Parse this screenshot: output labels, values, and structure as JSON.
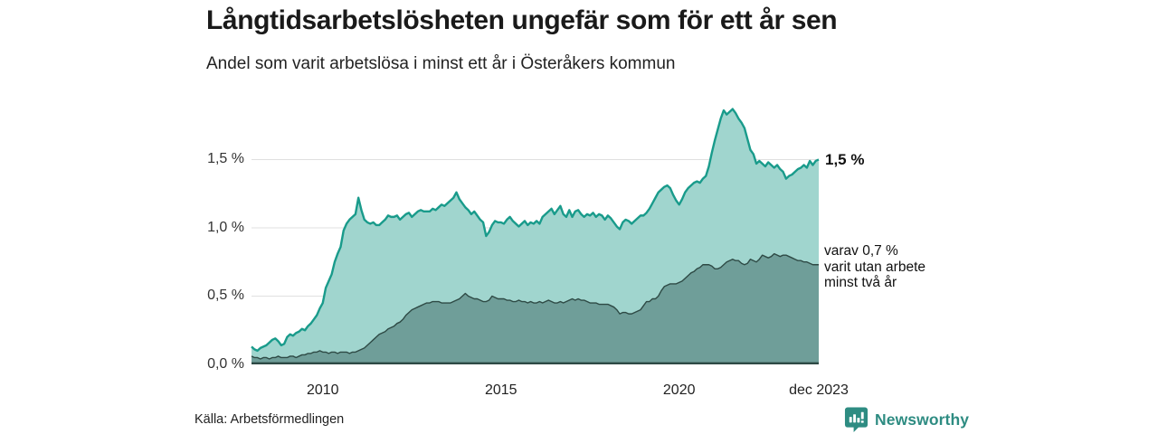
{
  "header": {
    "title": "Långtidsarbetslösheten ungefär som för ett år sen",
    "subtitle": "Andel som varit arbetslösa i minst ett år i Österåkers kommun"
  },
  "annotations": {
    "total_end_label": "1,5 %",
    "subset_end_lines": [
      "varav 0,7 %",
      "varit utan arbete",
      "minst två år"
    ]
  },
  "footer": {
    "source": "Källa: Arbetsförmedlingen",
    "brand": "Newsworthy"
  },
  "colors": {
    "total_line": "#199B8B",
    "total_fill": "#A0D5CE",
    "subset_line": "#2E4A45",
    "subset_fill": "#6F9E99",
    "gridline": "#E0E0E0",
    "baseline": "#2E4A45",
    "brand_teal": "#2E8C82",
    "text_dark": "#1A1A1A"
  },
  "chart_data": {
    "type": "area",
    "title": "Långtidsarbetslösheten ungefär som för ett år sen",
    "subtitle": "Andel som varit arbetslösa i minst ett år i Österåkers kommun",
    "unit": "%",
    "frequency": "monthly",
    "x_start": "2008-01",
    "x_end": "2023-12",
    "ylim": [
      0,
      1.94
    ],
    "grid": true,
    "legend": "none",
    "y_ticks": [
      {
        "value": 0.0,
        "label": "0,0 %"
      },
      {
        "value": 0.5,
        "label": "0,5 %"
      },
      {
        "value": 1.0,
        "label": "1,0 %"
      },
      {
        "value": 1.5,
        "label": "1,5 %"
      }
    ],
    "x_ticks": [
      {
        "month_index": 24,
        "label": "2010"
      },
      {
        "month_index": 84,
        "label": "2015"
      },
      {
        "month_index": 144,
        "label": "2020"
      },
      {
        "month_index": 191,
        "label": "dec 2023"
      }
    ],
    "series": [
      {
        "name": "Andel arbetslösa minst ett år",
        "end_value_label": "1,5 %",
        "values": [
          0.13,
          0.11,
          0.1,
          0.12,
          0.13,
          0.14,
          0.16,
          0.18,
          0.19,
          0.17,
          0.14,
          0.15,
          0.2,
          0.22,
          0.21,
          0.23,
          0.24,
          0.26,
          0.25,
          0.28,
          0.3,
          0.33,
          0.36,
          0.41,
          0.45,
          0.56,
          0.61,
          0.66,
          0.75,
          0.81,
          0.86,
          0.98,
          1.03,
          1.06,
          1.08,
          1.1,
          1.22,
          1.13,
          1.06,
          1.04,
          1.03,
          1.04,
          1.02,
          1.02,
          1.04,
          1.06,
          1.09,
          1.08,
          1.08,
          1.09,
          1.06,
          1.08,
          1.1,
          1.11,
          1.08,
          1.1,
          1.12,
          1.13,
          1.12,
          1.12,
          1.12,
          1.14,
          1.13,
          1.15,
          1.17,
          1.16,
          1.18,
          1.2,
          1.22,
          1.26,
          1.21,
          1.18,
          1.15,
          1.13,
          1.1,
          1.12,
          1.09,
          1.06,
          1.04,
          0.94,
          0.97,
          1.02,
          1.05,
          1.04,
          1.04,
          1.03,
          1.06,
          1.08,
          1.05,
          1.03,
          1.01,
          1.03,
          1.05,
          1.02,
          1.04,
          1.03,
          1.05,
          1.03,
          1.08,
          1.1,
          1.12,
          1.14,
          1.1,
          1.13,
          1.16,
          1.1,
          1.08,
          1.13,
          1.08,
          1.12,
          1.13,
          1.1,
          1.08,
          1.1,
          1.09,
          1.11,
          1.08,
          1.1,
          1.09,
          1.06,
          1.09,
          1.07,
          1.04,
          1.01,
          0.99,
          1.04,
          1.06,
          1.05,
          1.03,
          1.05,
          1.07,
          1.09,
          1.09,
          1.11,
          1.14,
          1.18,
          1.22,
          1.26,
          1.28,
          1.3,
          1.31,
          1.29,
          1.24,
          1.2,
          1.17,
          1.21,
          1.26,
          1.29,
          1.31,
          1.33,
          1.34,
          1.33,
          1.36,
          1.38,
          1.45,
          1.55,
          1.64,
          1.72,
          1.8,
          1.86,
          1.83,
          1.85,
          1.87,
          1.84,
          1.8,
          1.77,
          1.73,
          1.65,
          1.57,
          1.54,
          1.47,
          1.49,
          1.47,
          1.45,
          1.48,
          1.46,
          1.44,
          1.46,
          1.43,
          1.41,
          1.36,
          1.38,
          1.39,
          1.41,
          1.43,
          1.44,
          1.46,
          1.44,
          1.49,
          1.46,
          1.49,
          1.5
        ]
      },
      {
        "name": "Varav utan arbete minst två år",
        "end_value_label": "varav 0,7 % varit utan arbete minst två år",
        "values": [
          0.06,
          0.05,
          0.05,
          0.04,
          0.05,
          0.05,
          0.04,
          0.05,
          0.05,
          0.06,
          0.05,
          0.05,
          0.05,
          0.06,
          0.06,
          0.05,
          0.06,
          0.07,
          0.07,
          0.08,
          0.08,
          0.09,
          0.09,
          0.1,
          0.09,
          0.09,
          0.08,
          0.09,
          0.09,
          0.08,
          0.09,
          0.09,
          0.09,
          0.08,
          0.09,
          0.09,
          0.1,
          0.11,
          0.12,
          0.14,
          0.16,
          0.18,
          0.2,
          0.22,
          0.23,
          0.24,
          0.26,
          0.27,
          0.28,
          0.3,
          0.31,
          0.33,
          0.36,
          0.38,
          0.4,
          0.41,
          0.42,
          0.43,
          0.44,
          0.45,
          0.45,
          0.46,
          0.46,
          0.46,
          0.45,
          0.45,
          0.45,
          0.45,
          0.46,
          0.47,
          0.48,
          0.5,
          0.52,
          0.5,
          0.49,
          0.48,
          0.48,
          0.47,
          0.46,
          0.46,
          0.47,
          0.5,
          0.49,
          0.48,
          0.48,
          0.48,
          0.47,
          0.47,
          0.46,
          0.46,
          0.47,
          0.46,
          0.46,
          0.45,
          0.46,
          0.45,
          0.45,
          0.46,
          0.45,
          0.46,
          0.47,
          0.46,
          0.45,
          0.45,
          0.46,
          0.45,
          0.46,
          0.47,
          0.48,
          0.47,
          0.48,
          0.47,
          0.47,
          0.46,
          0.45,
          0.45,
          0.45,
          0.44,
          0.44,
          0.44,
          0.44,
          0.43,
          0.42,
          0.4,
          0.37,
          0.38,
          0.38,
          0.37,
          0.37,
          0.38,
          0.39,
          0.4,
          0.43,
          0.46,
          0.46,
          0.48,
          0.48,
          0.5,
          0.54,
          0.57,
          0.58,
          0.59,
          0.59,
          0.59,
          0.6,
          0.61,
          0.63,
          0.65,
          0.67,
          0.68,
          0.7,
          0.71,
          0.73,
          0.73,
          0.73,
          0.72,
          0.7,
          0.7,
          0.71,
          0.73,
          0.75,
          0.76,
          0.77,
          0.76,
          0.76,
          0.74,
          0.73,
          0.74,
          0.77,
          0.76,
          0.75,
          0.77,
          0.8,
          0.79,
          0.78,
          0.79,
          0.81,
          0.8,
          0.79,
          0.8,
          0.8,
          0.79,
          0.78,
          0.77,
          0.76,
          0.76,
          0.75,
          0.75,
          0.74,
          0.73,
          0.73,
          0.73
        ]
      }
    ]
  }
}
